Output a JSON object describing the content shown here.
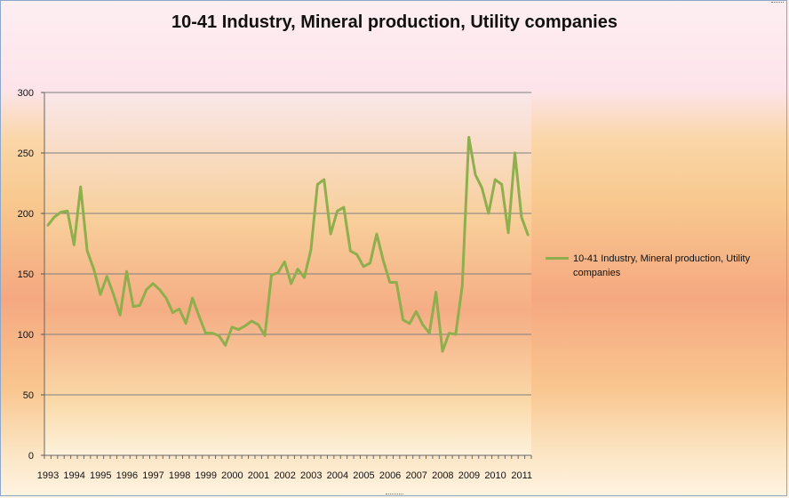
{
  "colors": {
    "series": "#8fae4e",
    "gridline": "#7f7f7f",
    "plot_bg_top": "#f9e7e9",
    "plot_bg_mid": "#f6b286",
    "plot_bg_bottom": "#fdf3e0"
  },
  "chart_data": {
    "type": "line",
    "title": "10-41 Industry, Mineral production, Utility companies",
    "xlabel": "",
    "ylabel": "",
    "ylim": [
      0,
      300
    ],
    "y_ticks": [
      0,
      50,
      100,
      150,
      200,
      250,
      300
    ],
    "x_tick_labels": [
      "1993",
      "1994",
      "1995",
      "1996",
      "1997",
      "1998",
      "1999",
      "2000",
      "2001",
      "2002",
      "2003",
      "2004",
      "2005",
      "2006",
      "2007",
      "2008",
      "2009",
      "2010",
      "2011"
    ],
    "points_per_year": 4,
    "grid": true,
    "legend_position": "right",
    "series": [
      {
        "name": "10-41 Industry, Mineral production, Utility companies",
        "values": [
          190,
          197,
          201,
          202,
          174,
          222,
          169,
          154,
          133,
          148,
          133,
          116,
          152,
          123,
          124,
          137,
          142,
          137,
          130,
          118,
          121,
          109,
          130,
          115,
          101,
          101,
          99,
          91,
          106,
          104,
          107,
          111,
          108,
          99,
          149,
          151,
          160,
          142,
          154,
          147,
          170,
          224,
          228,
          183,
          202,
          205,
          169,
          166,
          156,
          159,
          183,
          161,
          143,
          143,
          112,
          109,
          119,
          108,
          101,
          135,
          86,
          101,
          100,
          140,
          263,
          232,
          221,
          200,
          228,
          224,
          184,
          250,
          197,
          182
        ]
      }
    ]
  }
}
